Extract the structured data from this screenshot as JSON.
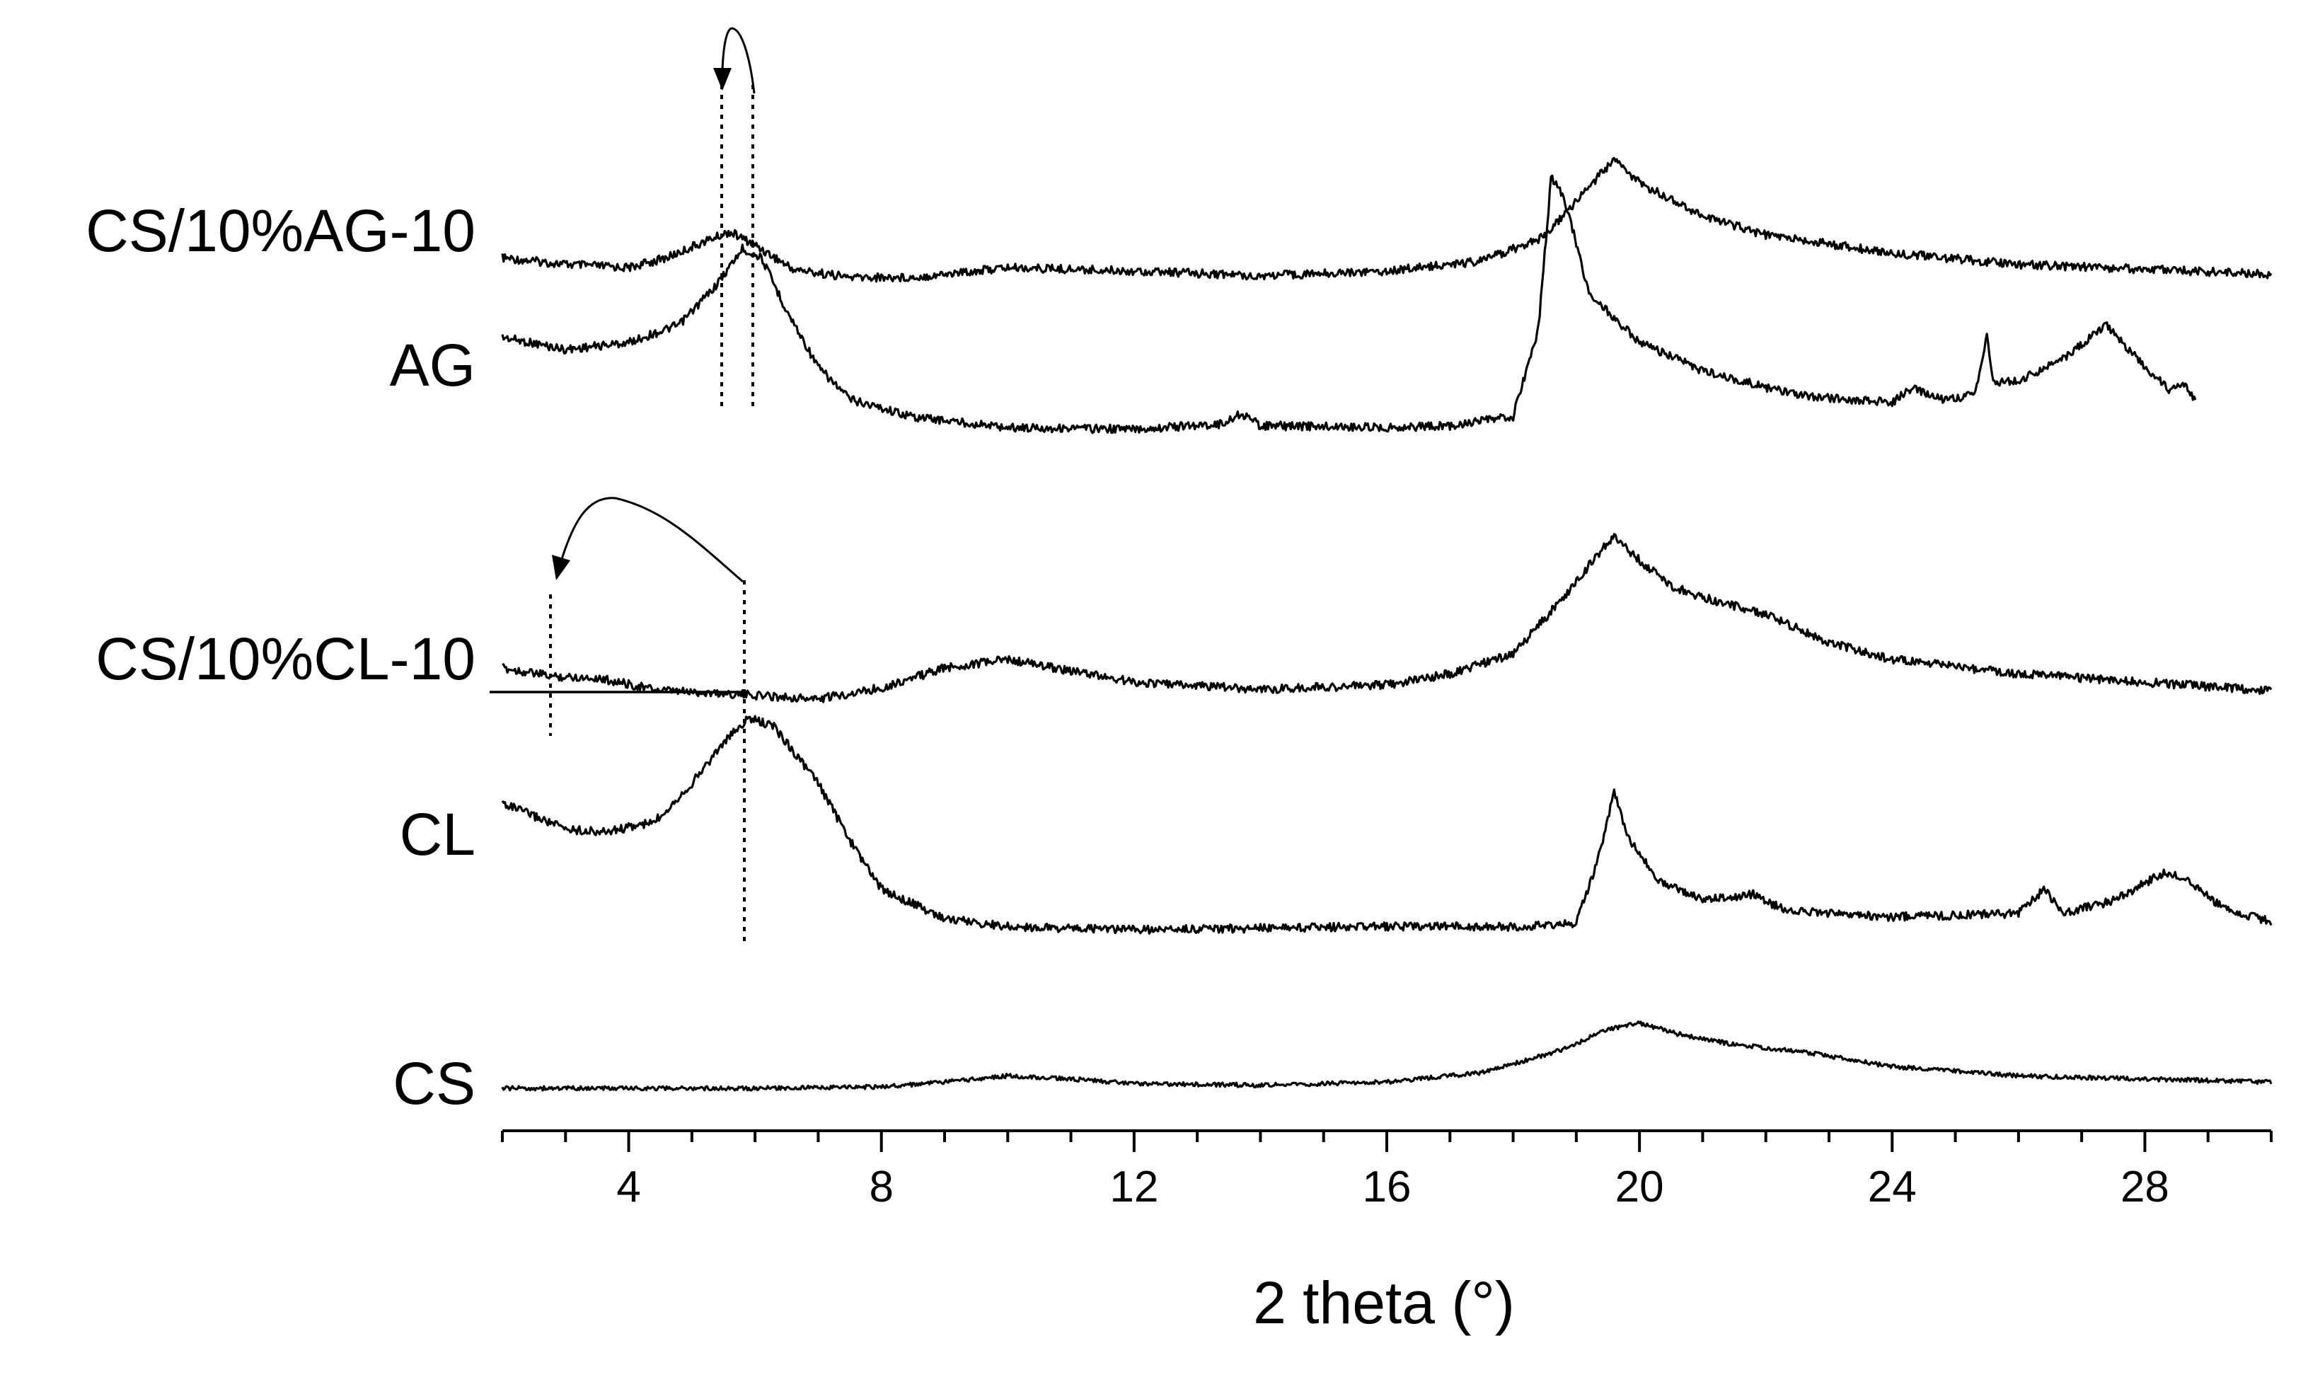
{
  "chart_data": {
    "type": "line",
    "xlabel": "2 theta (°)",
    "ylabel": "",
    "xlim": [
      2,
      30
    ],
    "xticks": [
      4,
      8,
      12,
      16,
      20,
      24,
      28
    ],
    "minor_tick_step": 1,
    "grid": false,
    "legend": "none",
    "series": [
      {
        "name": "CS/10%AG-10",
        "x_range": [
          2,
          30
        ],
        "points": [
          [
            2,
            0.12
          ],
          [
            3,
            0.08
          ],
          [
            4,
            0.06
          ],
          [
            4.6,
            0.12
          ],
          [
            5.2,
            0.22
          ],
          [
            5.6,
            0.28
          ],
          [
            6.0,
            0.2
          ],
          [
            6.6,
            0.05
          ],
          [
            7.5,
            0.0
          ],
          [
            8.5,
            0.0
          ],
          [
            10,
            0.06
          ],
          [
            12,
            0.04
          ],
          [
            14,
            0.01
          ],
          [
            16,
            0.04
          ],
          [
            17.5,
            0.1
          ],
          [
            18.5,
            0.25
          ],
          [
            19.3,
            0.6
          ],
          [
            19.6,
            0.72
          ],
          [
            20,
            0.58
          ],
          [
            21,
            0.38
          ],
          [
            22,
            0.26
          ],
          [
            24,
            0.15
          ],
          [
            26,
            0.08
          ],
          [
            28,
            0.05
          ],
          [
            30,
            0.02
          ]
        ]
      },
      {
        "name": "AG",
        "x_range": [
          2,
          28.8
        ],
        "points": [
          [
            2,
            0.55
          ],
          [
            3,
            0.48
          ],
          [
            4,
            0.52
          ],
          [
            4.8,
            0.62
          ],
          [
            5.4,
            0.85
          ],
          [
            5.8,
            1.05
          ],
          [
            6.1,
            1.0
          ],
          [
            6.5,
            0.7
          ],
          [
            7,
            0.38
          ],
          [
            7.5,
            0.2
          ],
          [
            8.5,
            0.1
          ],
          [
            10,
            0.04
          ],
          [
            12,
            0.03
          ],
          [
            13.4,
            0.06
          ],
          [
            13.7,
            0.12
          ],
          [
            14,
            0.05
          ],
          [
            16,
            0.04
          ],
          [
            17,
            0.05
          ],
          [
            18,
            0.1
          ],
          [
            18.4,
            0.6
          ],
          [
            18.6,
            1.45
          ],
          [
            18.8,
            1.35
          ],
          [
            19.2,
            0.8
          ],
          [
            20,
            0.52
          ],
          [
            21,
            0.36
          ],
          [
            22.5,
            0.22
          ],
          [
            24,
            0.18
          ],
          [
            24.3,
            0.26
          ],
          [
            24.8,
            0.2
          ],
          [
            25.3,
            0.22
          ],
          [
            25.5,
            0.55
          ],
          [
            25.6,
            0.3
          ],
          [
            26,
            0.3
          ],
          [
            26.8,
            0.45
          ],
          [
            27.4,
            0.62
          ],
          [
            28,
            0.38
          ],
          [
            28.4,
            0.25
          ],
          [
            28.6,
            0.3
          ],
          [
            28.8,
            0.2
          ]
        ]
      },
      {
        "name": "CS/10%CL-10",
        "x_range": [
          2,
          30
        ],
        "points": [
          [
            2,
            0.22
          ],
          [
            2.8,
            0.16
          ],
          [
            3.5,
            0.15
          ],
          [
            4.5,
            0.06
          ],
          [
            5.5,
            0.04
          ],
          [
            6.3,
            0.02
          ],
          [
            7,
            0.0
          ],
          [
            8,
            0.08
          ],
          [
            9,
            0.22
          ],
          [
            10,
            0.28
          ],
          [
            11,
            0.2
          ],
          [
            12,
            0.12
          ],
          [
            14,
            0.07
          ],
          [
            16,
            0.1
          ],
          [
            17,
            0.18
          ],
          [
            18,
            0.32
          ],
          [
            18.8,
            0.72
          ],
          [
            19.3,
            1.0
          ],
          [
            19.6,
            1.15
          ],
          [
            20,
            0.98
          ],
          [
            20.5,
            0.8
          ],
          [
            21,
            0.72
          ],
          [
            22,
            0.6
          ],
          [
            23,
            0.4
          ],
          [
            24,
            0.28
          ],
          [
            26,
            0.18
          ],
          [
            28,
            0.12
          ],
          [
            30,
            0.06
          ]
        ]
      },
      {
        "name": "CL",
        "x_range": [
          2,
          30
        ],
        "points": [
          [
            2,
            0.78
          ],
          [
            2.5,
            0.7
          ],
          [
            3,
            0.62
          ],
          [
            3.6,
            0.6
          ],
          [
            4.4,
            0.66
          ],
          [
            5,
            0.9
          ],
          [
            5.5,
            1.15
          ],
          [
            5.9,
            1.3
          ],
          [
            6.3,
            1.25
          ],
          [
            7,
            0.9
          ],
          [
            7.5,
            0.55
          ],
          [
            8,
            0.25
          ],
          [
            9,
            0.07
          ],
          [
            10,
            0.02
          ],
          [
            12,
            0.0
          ],
          [
            14,
            0.01
          ],
          [
            16,
            0.02
          ],
          [
            18,
            0.02
          ],
          [
            19,
            0.04
          ],
          [
            19.4,
            0.5
          ],
          [
            19.6,
            0.85
          ],
          [
            19.8,
            0.58
          ],
          [
            20.3,
            0.3
          ],
          [
            21,
            0.18
          ],
          [
            21.8,
            0.22
          ],
          [
            22.3,
            0.12
          ],
          [
            24,
            0.08
          ],
          [
            26,
            0.1
          ],
          [
            26.4,
            0.25
          ],
          [
            26.7,
            0.1
          ],
          [
            27.5,
            0.18
          ],
          [
            28.3,
            0.35
          ],
          [
            28.6,
            0.32
          ],
          [
            29.3,
            0.12
          ],
          [
            30,
            0.05
          ]
        ]
      },
      {
        "name": "CS",
        "x_range": [
          2,
          30
        ],
        "points": [
          [
            2,
            0.0
          ],
          [
            4,
            0.0
          ],
          [
            6,
            0.0
          ],
          [
            8,
            0.01
          ],
          [
            9,
            0.04
          ],
          [
            10,
            0.08
          ],
          [
            11,
            0.06
          ],
          [
            12,
            0.03
          ],
          [
            14,
            0.02
          ],
          [
            16,
            0.04
          ],
          [
            17.5,
            0.1
          ],
          [
            18.8,
            0.25
          ],
          [
            19.5,
            0.38
          ],
          [
            20,
            0.42
          ],
          [
            20.6,
            0.35
          ],
          [
            21.5,
            0.28
          ],
          [
            22.5,
            0.24
          ],
          [
            24,
            0.14
          ],
          [
            26,
            0.08
          ],
          [
            28,
            0.06
          ],
          [
            30,
            0.04
          ]
        ]
      }
    ]
  }
}
